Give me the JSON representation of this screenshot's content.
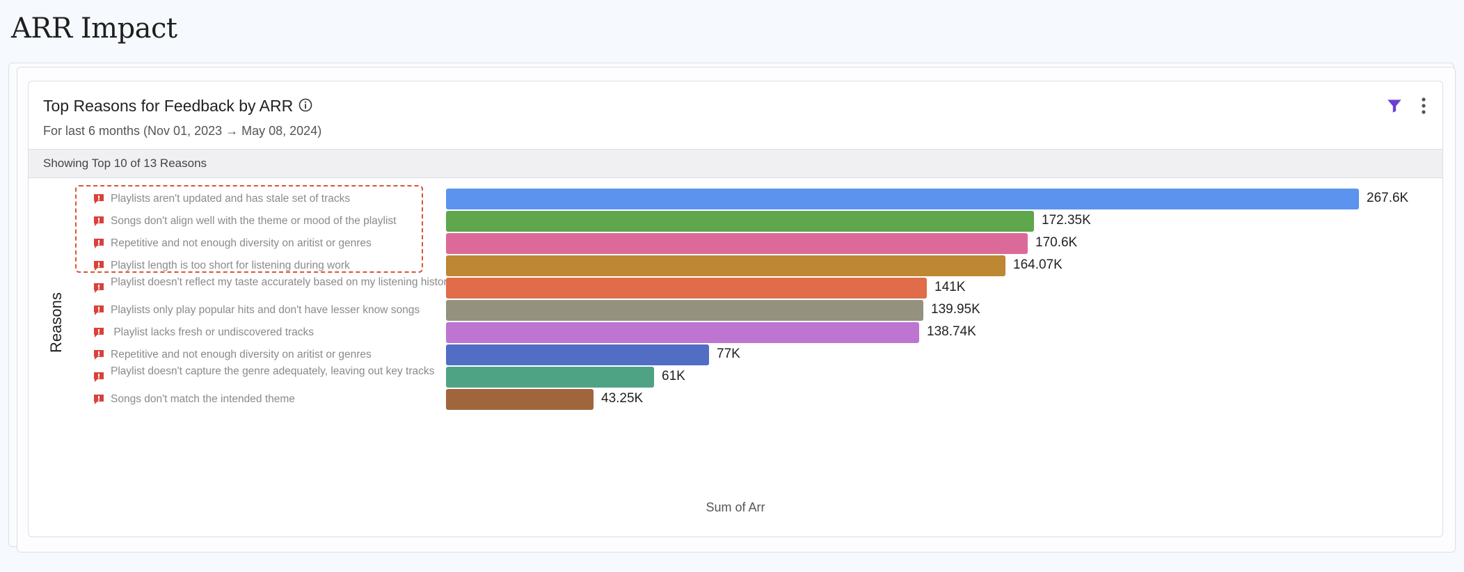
{
  "page": {
    "title": "ARR Impact"
  },
  "card": {
    "title": "Top Reasons for Feedback by ARR",
    "subtitle": "For last 6 months (Nov 01, 2023 → May 08, 2024)",
    "band": "Showing Top 10 of 13 Reasons",
    "icons": {
      "info": "info-icon",
      "filter": "filter-icon",
      "menu": "more-vertical-icon",
      "row": "alert-message-icon"
    },
    "colors": {
      "filter": "#6b3fd4",
      "row_icon": "#d9413a",
      "highlight": "#e0522f"
    }
  },
  "chart_data": {
    "type": "bar",
    "orientation": "horizontal",
    "ylabel": "Reasons",
    "xlabel": "Sum of Arr",
    "categories": [
      "Playlists aren't updated and has stale set of tracks",
      "Songs don't align well with the theme or mood of the playlist",
      "Repetitive and not enough diversity on aritist or genres",
      "Playlist length is too short for listening during work",
      "Playlist doesn't reflect my taste accurately based on my listening history",
      "Playlists only play popular hits and don't have lesser know songs",
      " Playlist lacks fresh or undiscovered tracks",
      "Repetitive and not enough diversity on aritist or genres",
      "Playlist doesn't capture the genre adequately, leaving out key tracks",
      "Songs don't match the intended theme"
    ],
    "values": [
      267600,
      172350,
      170600,
      164070,
      141000,
      139950,
      138740,
      77000,
      61000,
      43250
    ],
    "value_labels": [
      "267.6K",
      "172.35K",
      "170.6K",
      "164.07K",
      "141K",
      "139.95K",
      "138.74K",
      "77K",
      "61K",
      "43.25K"
    ],
    "colors": [
      "#5b93ee",
      "#5fa64d",
      "#dc6a99",
      "#bd8733",
      "#e06c4a",
      "#94927e",
      "#bd75d1",
      "#516dc4",
      "#4ea385",
      "#a1653d"
    ],
    "highlighted_rows": [
      0,
      1,
      2
    ],
    "xlim": [
      0,
      267600
    ],
    "grid": false,
    "legend": "none"
  }
}
